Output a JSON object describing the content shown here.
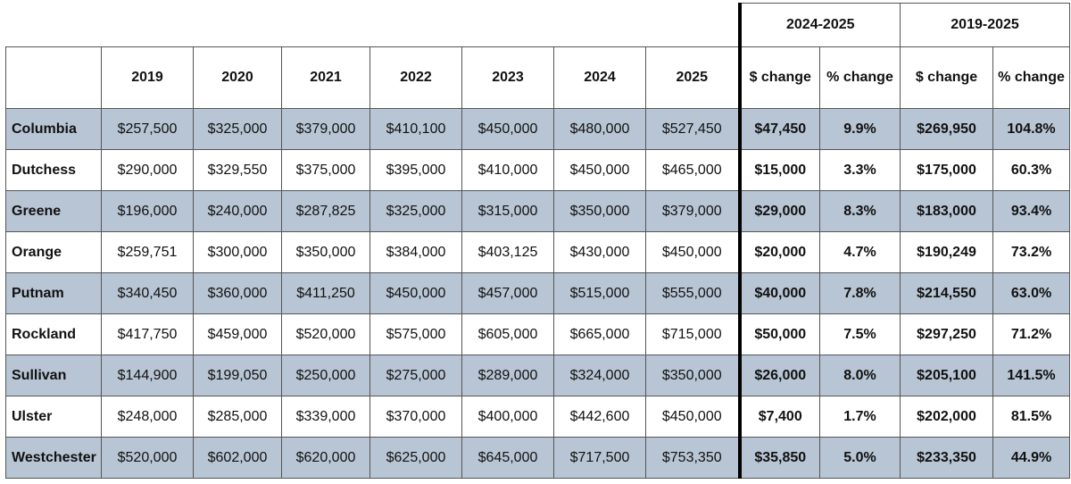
{
  "table": {
    "group_headers": [
      "2024-2025",
      "2019-2025"
    ],
    "headers": [
      "2019",
      "2020",
      "2021",
      "2022",
      "2023",
      "2024",
      "2025",
      "$ change",
      "% change",
      "$ change",
      "% change"
    ],
    "rows": [
      [
        "Columbia",
        "$257,500",
        "$325,000",
        "$379,000",
        "$410,100",
        "$450,000",
        "$480,000",
        "$527,450",
        "$47,450",
        "9.9%",
        "$269,950",
        "104.8%"
      ],
      [
        "Dutchess",
        "$290,000",
        "$329,550",
        "$375,000",
        "$395,000",
        "$410,000",
        "$450,000",
        "$465,000",
        "$15,000",
        "3.3%",
        "$175,000",
        "60.3%"
      ],
      [
        "Greene",
        "$196,000",
        "$240,000",
        "$287,825",
        "$325,000",
        "$315,000",
        "$350,000",
        "$379,000",
        "$29,000",
        "8.3%",
        "$183,000",
        "93.4%"
      ],
      [
        "Orange",
        "$259,751",
        "$300,000",
        "$350,000",
        "$384,000",
        "$403,125",
        "$430,000",
        "$450,000",
        "$20,000",
        "4.7%",
        "$190,249",
        "73.2%"
      ],
      [
        "Putnam",
        "$340,450",
        "$360,000",
        "$411,250",
        "$450,000",
        "$457,000",
        "$515,000",
        "$555,000",
        "$40,000",
        "7.8%",
        "$214,550",
        "63.0%"
      ],
      [
        "Rockland",
        "$417,750",
        "$459,000",
        "$520,000",
        "$575,000",
        "$605,000",
        "$665,000",
        "$715,000",
        "$50,000",
        "7.5%",
        "$297,250",
        "71.2%"
      ],
      [
        "Sullivan",
        "$144,900",
        "$199,050",
        "$250,000",
        "$275,000",
        "$289,000",
        "$324,000",
        "$350,000",
        "$26,000",
        "8.0%",
        "$205,100",
        "141.5%"
      ],
      [
        "Ulster",
        "$248,000",
        "$285,000",
        "$339,000",
        "$370,000",
        "$400,000",
        "$442,600",
        "$450,000",
        "$7,400",
        "1.7%",
        "$202,000",
        "81.5%"
      ],
      [
        "Westchester",
        "$520,000",
        "$602,000",
        "$620,000",
        "$625,000",
        "$645,000",
        "$717,500",
        "$753,350",
        "$35,850",
        "5.0%",
        "$233,350",
        "44.9%"
      ]
    ]
  }
}
